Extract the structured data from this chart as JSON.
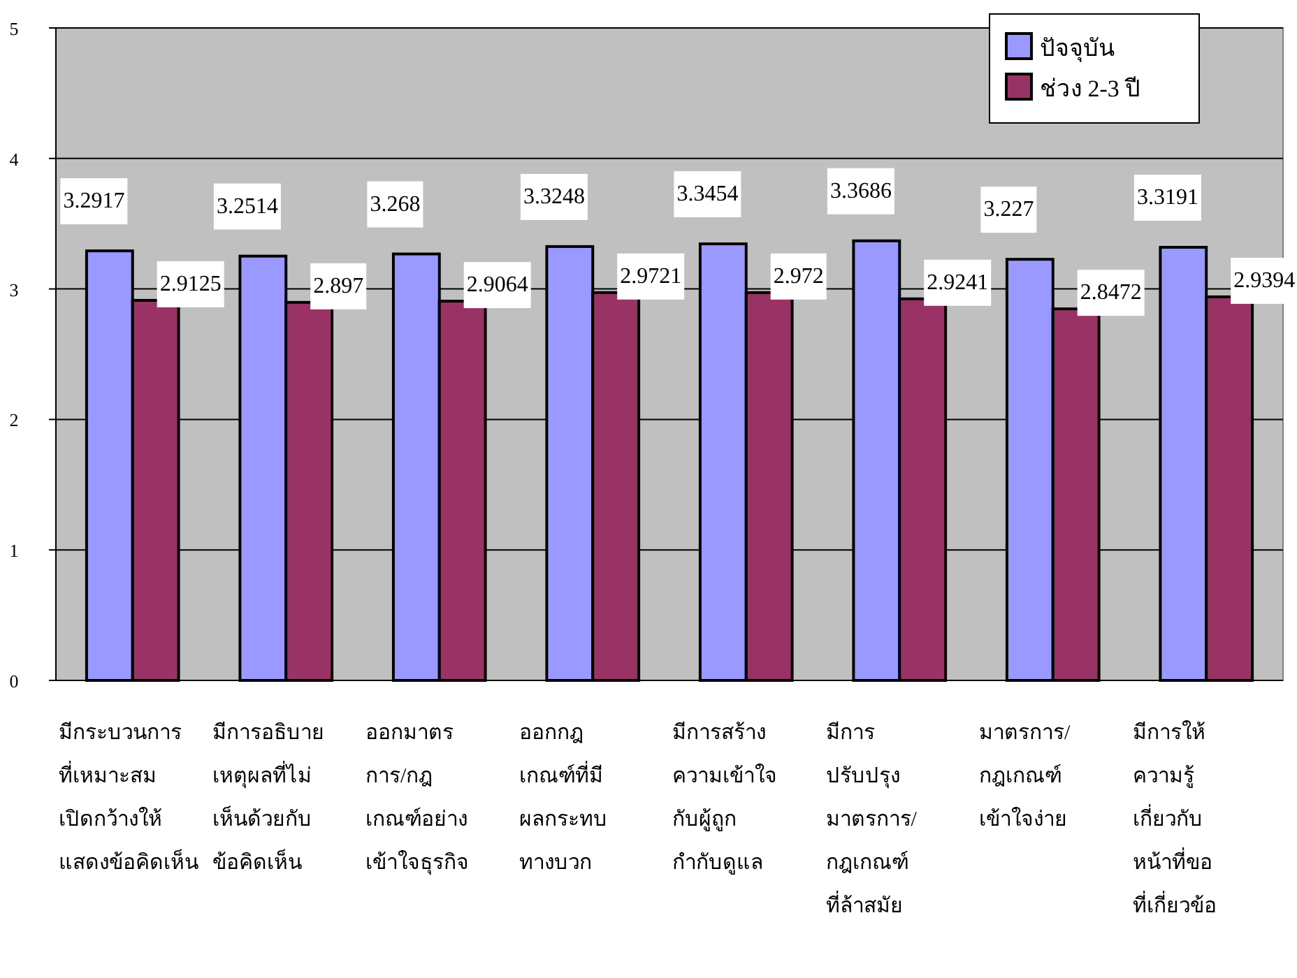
{
  "chart_data": {
    "type": "bar",
    "categories": [
      "มีกระบวนการ\nที่เหมาะสม\nเปิดกว้างให้\nแสดงข้อคิดเห็น",
      "มีการอธิบาย\nเหตุผลที่ไม่\nเห็นด้วยกับ\nข้อคิดเห็น",
      "ออกมาตร\nการ/กฎ\nเกณฑ์อย่าง\nเข้าใจธุรกิจ",
      "ออกกฎ\nเกณฑ์ที่มี\nผลกระทบ\nทางบวก",
      "มีการสร้าง\nความเข้าใจ\nกับผู้ถูก\nกำกับดูแล",
      "มีการ\nปรับปรุง\nมาตรการ/\nกฎเกณฑ์\nที่ล้าสมัย",
      "มาตรการ/\nกฎเกณฑ์\nเข้าใจง่าย",
      "มีการให้\nความรู้\nเกี่ยวกับ\nหน้าที่ขอ\nที่เกี่ยวข้อ"
    ],
    "series": [
      {
        "name": "ปัจจุบัน",
        "color": "#9999ff",
        "values": [
          3.2917,
          3.2514,
          3.268,
          3.3248,
          3.3454,
          3.3686,
          3.227,
          3.3191
        ]
      },
      {
        "name": "ช่วง 2-3 ปี",
        "color": "#993366",
        "values": [
          2.9125,
          2.897,
          2.9064,
          2.9721,
          2.972,
          2.9241,
          2.8472,
          2.9394
        ]
      }
    ],
    "ylim": [
      0,
      5
    ],
    "yticks": [
      0,
      1,
      2,
      3,
      4,
      5
    ],
    "grid": "y",
    "legend": "top right",
    "data_labels": true
  }
}
